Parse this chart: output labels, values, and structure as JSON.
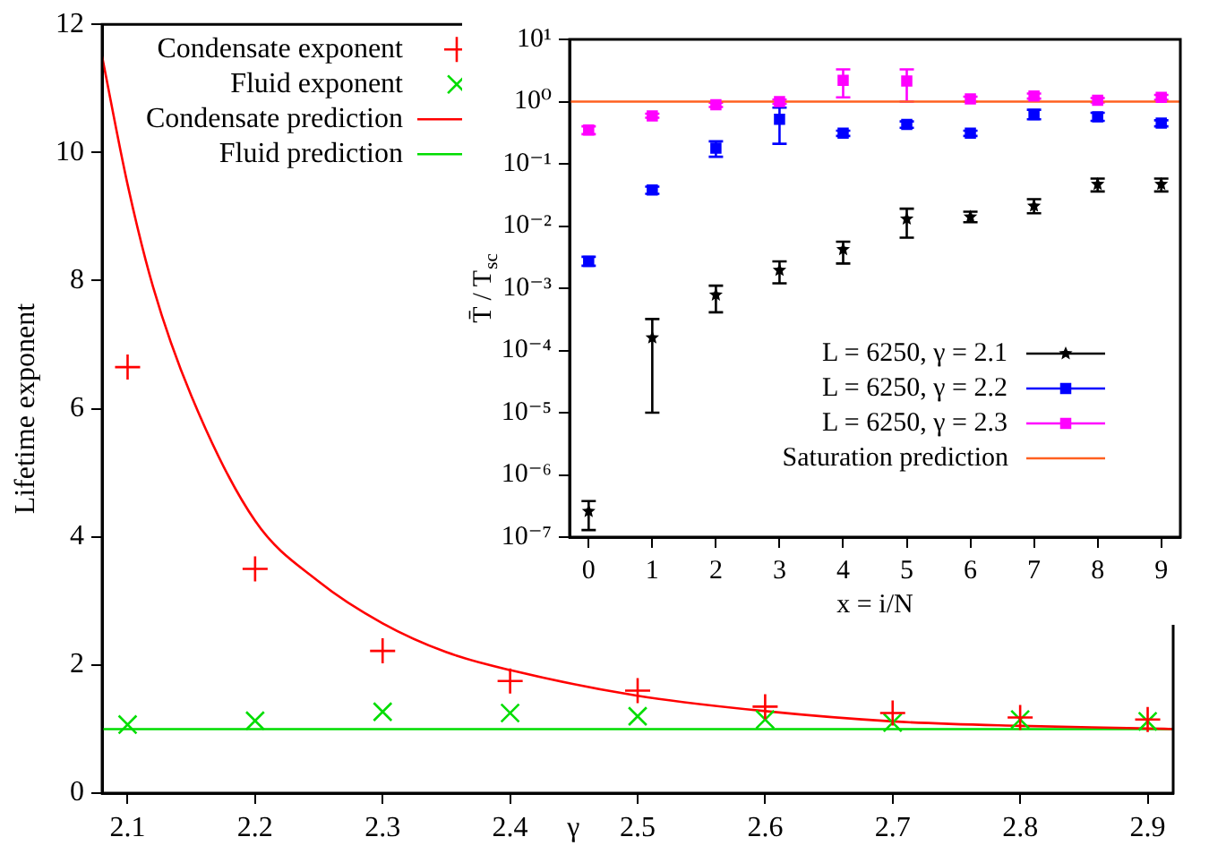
{
  "chart_data": [
    {
      "type": "scatter",
      "xlabel": "γ",
      "ylabel": "Lifetime exponent",
      "xlim": [
        2.08,
        2.92
      ],
      "xticks": [
        2.1,
        2.2,
        2.3,
        2.4,
        2.5,
        2.6,
        2.7,
        2.8,
        2.9
      ],
      "ylim": [
        0,
        12
      ],
      "yticks": [
        0,
        2,
        4,
        6,
        8,
        10,
        12
      ],
      "grid": false,
      "legend": "top left",
      "x": [
        2.1,
        2.2,
        2.3,
        2.4,
        2.5,
        2.6,
        2.7,
        2.8,
        2.9
      ],
      "series": [
        {
          "name": "Condensate exponent",
          "marker": "plus",
          "color": "#ff0000",
          "values": [
            6.65,
            3.5,
            2.22,
            1.75,
            1.6,
            1.35,
            1.25,
            1.18,
            1.15
          ]
        },
        {
          "name": "Fluid exponent",
          "marker": "cross",
          "color": "#00dd00",
          "values": [
            1.07,
            1.13,
            1.27,
            1.25,
            1.2,
            1.15,
            1.1,
            1.15,
            1.12
          ]
        },
        {
          "name": "Condensate prediction",
          "type": "line",
          "color": "#ff0000",
          "line_style": "solid",
          "x": [
            2.08,
            2.1,
            2.12,
            2.15,
            2.2,
            2.25,
            2.3,
            2.35,
            2.4,
            2.5,
            2.6,
            2.7,
            2.8,
            2.9,
            2.92
          ],
          "values": [
            11.5,
            9.5,
            7.9,
            6.2,
            4.25,
            3.3,
            2.65,
            2.2,
            1.92,
            1.52,
            1.28,
            1.12,
            1.05,
            1.01,
            1.0
          ]
        },
        {
          "name": "Fluid prediction",
          "type": "line",
          "color": "#00dd00",
          "line_style": "solid",
          "x": [
            2.08,
            2.92
          ],
          "values": [
            1,
            1
          ]
        }
      ]
    },
    {
      "type": "scatter",
      "xlabel": "x = i/N",
      "ylabel": "T̄ / T$_{sc}$",
      "log": "y",
      "xlim": [
        -0.3,
        9.3
      ],
      "xticks": [
        0,
        1,
        2,
        3,
        4,
        5,
        6,
        7,
        8,
        9
      ],
      "ylim": [
        1e-07,
        10
      ],
      "yticks": [
        {
          "value": 1e-07,
          "label": "10⁻⁷"
        },
        {
          "value": 1e-06,
          "label": "10⁻⁶"
        },
        {
          "value": 1e-05,
          "label": "10⁻⁵"
        },
        {
          "value": 0.0001,
          "label": "10⁻⁴"
        },
        {
          "value": 0.001,
          "label": "10⁻³"
        },
        {
          "value": 0.01,
          "label": "10⁻²"
        },
        {
          "value": 0.1,
          "label": "10⁻¹"
        },
        {
          "value": 1,
          "label": "10⁰"
        },
        {
          "value": 10,
          "label": "10¹"
        }
      ],
      "grid": false,
      "legend": "bottom right",
      "x": [
        0,
        1,
        2,
        3,
        4,
        5,
        6,
        7,
        8,
        9
      ],
      "series": [
        {
          "name": "L = 6250, γ = 2.1",
          "marker": "star",
          "color": "#000000",
          "values": [
            2.6e-07,
            0.00016,
            0.00078,
            0.00195,
            0.0042,
            0.013,
            0.014,
            0.021,
            0.047,
            0.047
          ],
          "errors": [
            [
              1.3e-07,
              3.8e-07
            ],
            [
              1e-05,
              0.00032
            ],
            [
              0.00041,
              0.0011
            ],
            [
              0.0012,
              0.0027
            ],
            [
              0.0025,
              0.0056
            ],
            [
              0.0065,
              0.019
            ],
            [
              0.0115,
              0.017
            ],
            [
              0.016,
              0.027
            ],
            [
              0.036,
              0.058
            ],
            [
              0.036,
              0.058
            ]
          ]
        },
        {
          "name": "L = 6250, γ = 2.2",
          "marker": "square",
          "color": "#0000ff",
          "values": [
            0.0027,
            0.038,
            0.178,
            0.52,
            0.31,
            0.43,
            0.31,
            0.62,
            0.57,
            0.45
          ],
          "errors": [
            [
              0.0023,
              0.0032
            ],
            [
              0.033,
              0.043
            ],
            [
              0.13,
              0.23
            ],
            [
              0.21,
              0.8
            ],
            [
              0.28,
              0.34
            ],
            [
              0.38,
              0.48
            ],
            [
              0.28,
              0.34
            ],
            [
              0.52,
              0.74
            ],
            [
              0.49,
              0.66
            ],
            [
              0.4,
              0.5
            ]
          ]
        },
        {
          "name": "L = 6250, γ = 2.3",
          "marker": "square",
          "color": "#ff00ff",
          "values": [
            0.35,
            0.59,
            0.89,
            1.0,
            2.2,
            2.15,
            1.1,
            1.23,
            1.05,
            1.17
          ],
          "errors": [
            [
              0.3,
              0.4
            ],
            [
              0.55,
              0.64
            ],
            [
              0.82,
              0.96
            ],
            [
              0.92,
              1.08
            ],
            [
              1.17,
              3.3
            ],
            [
              1.0,
              3.3
            ],
            [
              1.0,
              1.2
            ],
            [
              1.12,
              1.35
            ],
            [
              0.97,
              1.14
            ],
            [
              1.07,
              1.28
            ]
          ]
        },
        {
          "name": "Saturation prediction",
          "type": "line",
          "color": "#ff6020",
          "line_style": "solid",
          "x": [
            -0.3,
            9.3
          ],
          "values": [
            1,
            1
          ]
        }
      ]
    }
  ]
}
